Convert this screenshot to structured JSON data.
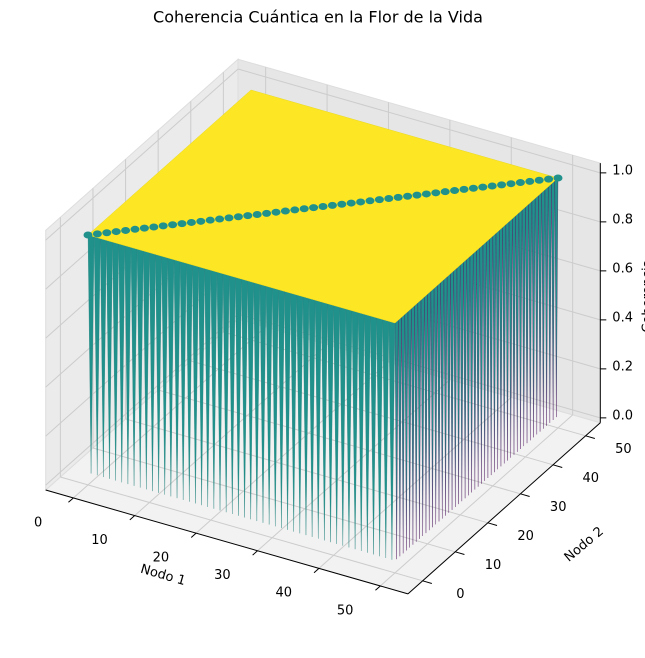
{
  "chart_data": {
    "type": "surface",
    "title": "Coherencia Cuántica en la Flor de la Vida",
    "xlabel": "Nodo 1",
    "ylabel": "Nodo 2",
    "zlabel": "Coherencia",
    "xlim": [
      0,
      50
    ],
    "ylim": [
      0,
      50
    ],
    "zlim": [
      0,
      1
    ],
    "xticks": [
      0,
      10,
      20,
      30,
      40,
      50
    ],
    "yticks": [
      0,
      10,
      20,
      30,
      40,
      50
    ],
    "zticks": [
      {
        "value": 0,
        "label": "0.0"
      },
      {
        "value": 0.2,
        "label": "0.2"
      },
      {
        "value": 0.4,
        "label": "0.4"
      },
      {
        "value": 0.6,
        "label": "0.6"
      },
      {
        "value": 0.8,
        "label": "0.8"
      },
      {
        "value": 1,
        "label": "1.0"
      }
    ],
    "surface": {
      "max": 1,
      "min": 0
    },
    "colors": {
      "high": "#fde725",
      "mid": "#21918c",
      "low": "#440154"
    },
    "grid": true
  }
}
